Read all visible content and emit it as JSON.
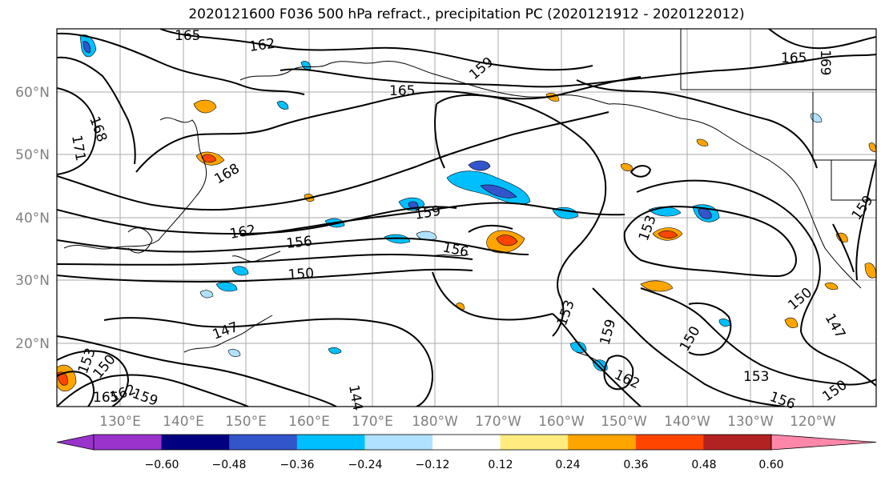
{
  "title": "2020121600 F036 500 hPa refract., precipitation PC (2020121912 - 2020122012)",
  "lat_labels": [
    "60°N",
    "50°N",
    "40°N",
    "30°N",
    "20°N"
  ],
  "lon_labels": [
    "130°E",
    "140°E",
    "150°E",
    "160°E",
    "170°E",
    "180°W",
    "170°W",
    "160°W",
    "150°W",
    "140°W",
    "130°W",
    "120°W"
  ],
  "contour_labels": [
    "165",
    "162",
    "165",
    "165",
    "169",
    "159",
    "168",
    "171",
    "168",
    "162",
    "159",
    "156",
    "156",
    "150",
    "153",
    "153",
    "150",
    "147",
    "159",
    "162",
    "150",
    "153",
    "156",
    "150",
    "147",
    "144",
    "153",
    "150",
    "162",
    "159",
    "165",
    "159"
  ],
  "colorbar": {
    "colors": [
      "#9933cc",
      "#000080",
      "#3355cc",
      "#00bfff",
      "#b0e2ff",
      "#ffffff",
      "#ffeb80",
      "#ffa500",
      "#ff4500",
      "#b22222",
      "#ff88aa"
    ],
    "tick_labels": [
      "−0.60",
      "−0.48",
      "−0.36",
      "−0.24",
      "−0.12",
      "0.12",
      "0.24",
      "0.36",
      "0.48",
      "0.60"
    ]
  },
  "colors": {
    "axis_label": "#808080",
    "contour": "#000000",
    "grid": "#aaaaaa"
  }
}
